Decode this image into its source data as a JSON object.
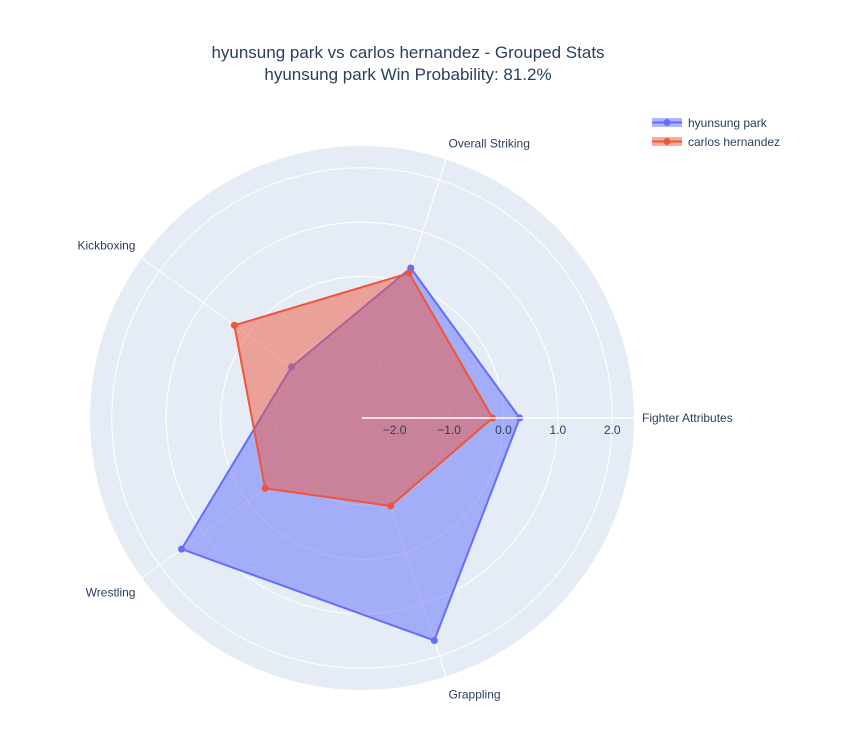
{
  "chart_data": {
    "type": "radar",
    "title": "hyunsung park vs carlos hernandez - Grouped Stats",
    "subtitle": "hyunsung park Win Probability: 81.2%",
    "categories": [
      "Fighter Attributes",
      "Overall Striking",
      "Kickboxing",
      "Wrestling",
      "Grappling"
    ],
    "radial_range": [
      -2.6,
      2.4
    ],
    "radial_ticks": [
      -2.0,
      -1.0,
      0.0,
      1.0,
      2.0
    ],
    "radial_tick_labels": [
      "−2.0",
      "−1.0",
      "0.0",
      "1.0",
      "2.0"
    ],
    "grid": true,
    "legend_position": "top-right",
    "series": [
      {
        "name": "hyunsung park",
        "values": [
          0.3,
          0.3,
          -1.0,
          1.5,
          1.7
        ],
        "color": "#636efa"
      },
      {
        "name": "carlos hernandez",
        "values": [
          -0.2,
          0.2,
          0.3,
          -0.4,
          -0.9
        ],
        "color": "#ef553b"
      }
    ]
  }
}
